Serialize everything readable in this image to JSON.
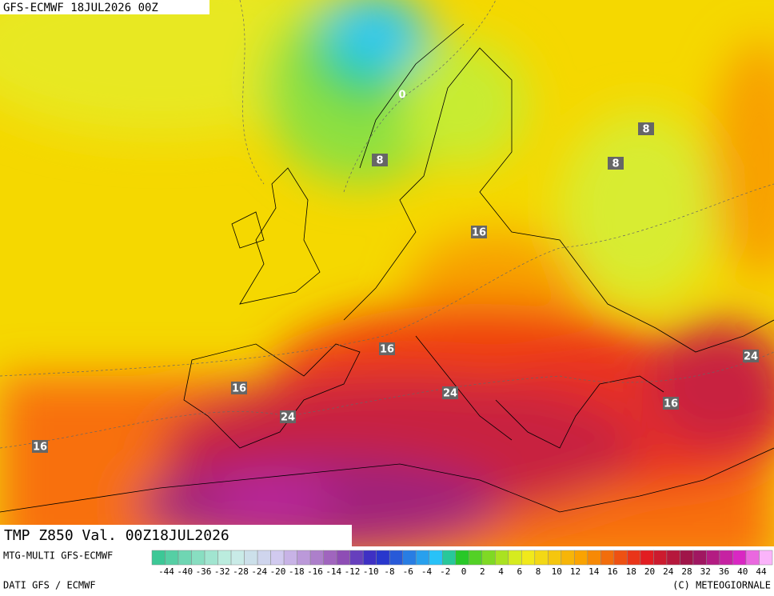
{
  "header": {
    "title": "GFS-ECMWF 18JUL2026 00Z"
  },
  "map": {
    "field_label": "TMP Z850 Val. 00Z18JUL2026",
    "contour_labels": [
      0,
      8,
      8,
      8,
      16,
      16,
      16,
      24,
      24,
      16,
      24,
      16
    ]
  },
  "footer": {
    "model": "MTG-MULTI GFS-ECMWF",
    "source": "DATI GFS / ECMWF",
    "credit": "(C) METEOGIORNALE",
    "colorbar_ticks": [
      -44,
      -40,
      -36,
      -32,
      -28,
      -24,
      -20,
      -18,
      -16,
      -14,
      -12,
      -10,
      -8,
      -6,
      -4,
      -2,
      0,
      2,
      4,
      6,
      8,
      10,
      12,
      14,
      16,
      18,
      20,
      24,
      28,
      32,
      36,
      40,
      44
    ]
  }
}
